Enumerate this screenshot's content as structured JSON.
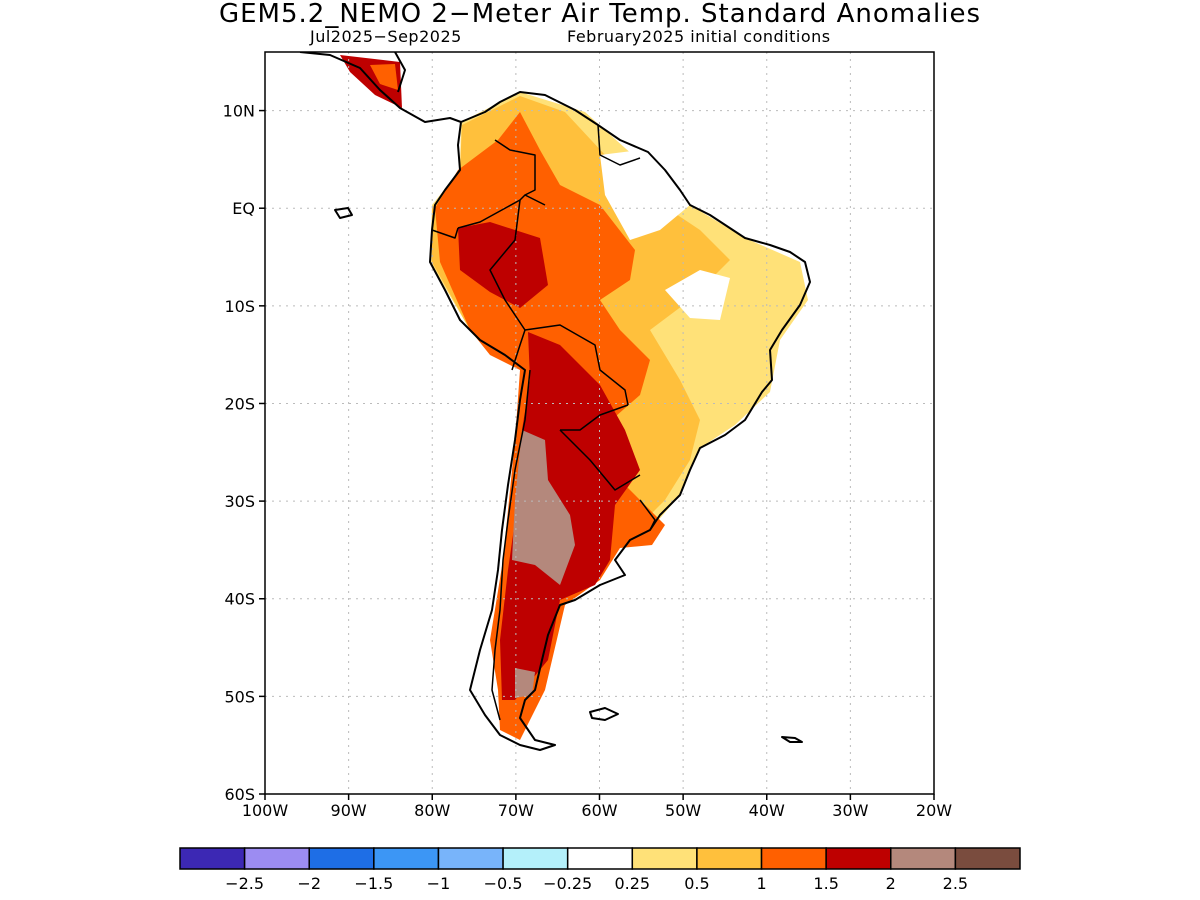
{
  "header": {
    "title": "GEM5.2_NEMO 2−Meter Air Temp. Standard Anomalies",
    "season": "Jul2025−Sep2025",
    "init": "February2025 initial conditions"
  },
  "map": {
    "lat_labels": [
      "10N",
      "EQ",
      "10S",
      "20S",
      "30S",
      "40S",
      "50S",
      "60S"
    ],
    "lon_labels": [
      "100W",
      "90W",
      "80W",
      "70W",
      "60W",
      "50W",
      "40W",
      "30W",
      "20W"
    ],
    "lat_values": [
      10,
      0,
      -10,
      -20,
      -30,
      -40,
      -50,
      -60
    ],
    "lon_values": [
      -100,
      -90,
      -80,
      -70,
      -60,
      -50,
      -40,
      -30,
      -20
    ],
    "lat_range": [
      -60,
      16
    ],
    "lon_range": [
      -100,
      -20
    ],
    "grid": true
  },
  "colorbar": {
    "colors": [
      "#3c28b4",
      "#9c8cf2",
      "#1e6ee6",
      "#3c96f5",
      "#78b4fa",
      "#b4f0fa",
      "#ffffff",
      "#ffe178",
      "#ffc03c",
      "#ff6000",
      "#be0000",
      "#b4887c",
      "#7a4c3e"
    ],
    "labels": [
      "−2.5",
      "−2",
      "−1.5",
      "−1",
      "−0.5",
      "−0.25",
      "0.25",
      "0.5",
      "1",
      "1.5",
      "2",
      "2.5"
    ]
  }
}
